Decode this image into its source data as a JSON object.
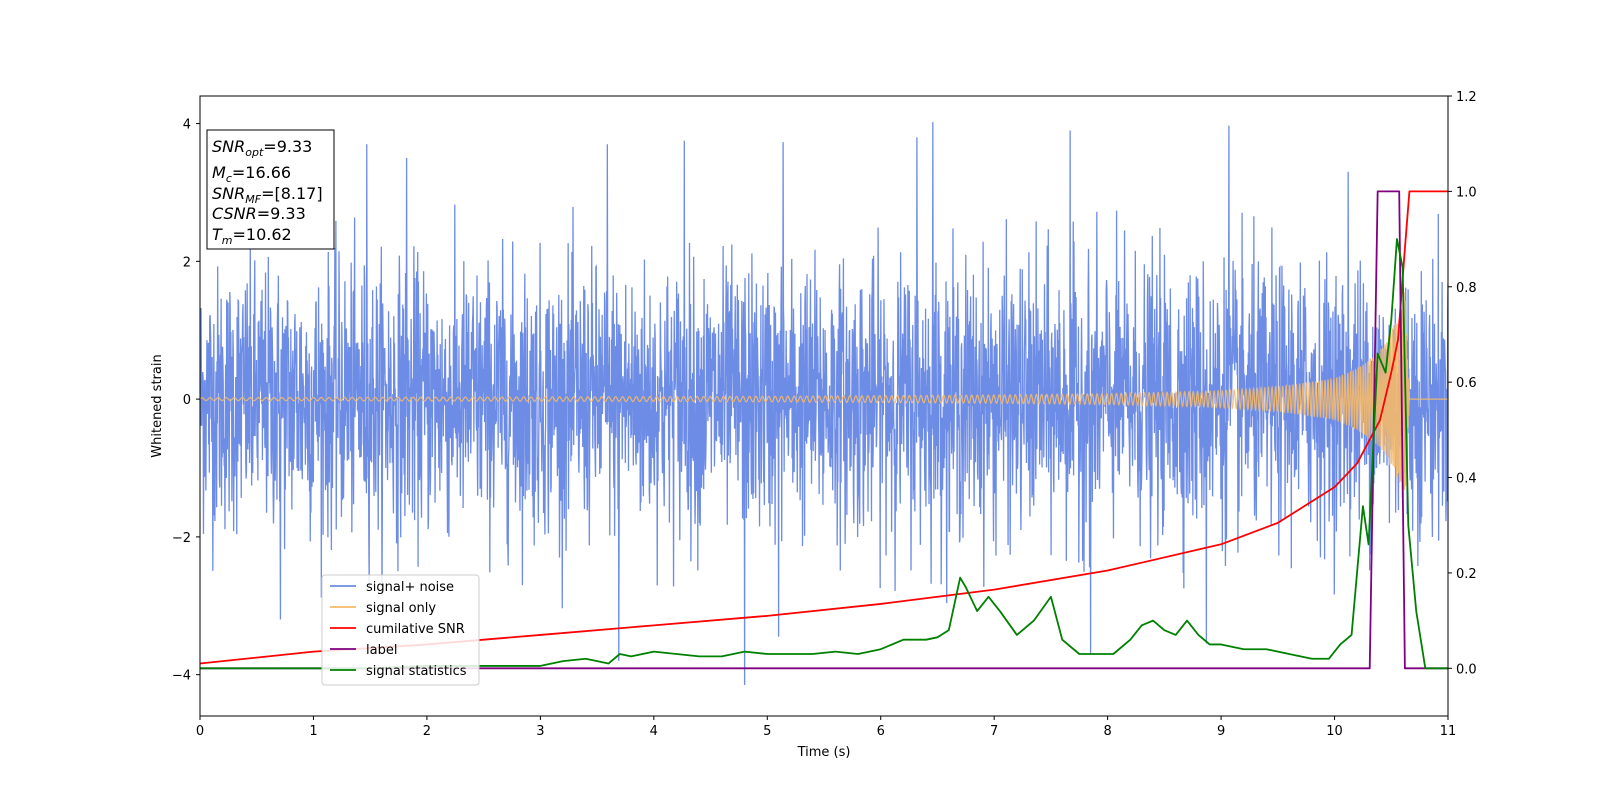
{
  "chart_data": {
    "type": "line",
    "xlabel": "Time (s)",
    "ylabel": "Whitened strain",
    "xlim": [
      0,
      11
    ],
    "ylim_left": [
      -4.6,
      4.4
    ],
    "ylim_right": [
      -0.1,
      1.2
    ],
    "x_ticks": [
      0,
      1,
      2,
      3,
      4,
      5,
      6,
      7,
      8,
      9,
      10,
      11
    ],
    "y_ticks_left": [
      -4,
      -2,
      0,
      2,
      4
    ],
    "y_ticks_right": [
      0.0,
      0.2,
      0.4,
      0.6,
      0.8,
      1.0,
      1.2
    ],
    "grid": false,
    "legend_position": "lower-left",
    "annotation_box": {
      "lines": [
        {
          "base": "SNR",
          "sub": "opt",
          "value": "=9.33"
        },
        {
          "base": "M",
          "sub": "c",
          "value": "=16.66"
        },
        {
          "base": "SNR",
          "sub": "MF",
          "value": "=[8.17]"
        },
        {
          "base": "CSNR",
          "sub": "",
          "value": "=9.33"
        },
        {
          "base": "T",
          "sub": "m",
          "value": "=10.62"
        }
      ]
    },
    "series": [
      {
        "name": "signal+ noise",
        "axis": "left",
        "color": "#6d8ce5",
        "description_kind": "noise band",
        "amplitude_typical": 2.3,
        "amplitude_peak": 4.0,
        "peaks": [
          {
            "x": 1.47,
            "y": 3.7
          },
          {
            "x": 1.82,
            "y": 3.5
          },
          {
            "x": 3.59,
            "y": 3.7
          },
          {
            "x": 4.27,
            "y": 3.75
          },
          {
            "x": 5.14,
            "y": 3.73
          },
          {
            "x": 6.32,
            "y": 3.8
          },
          {
            "x": 6.46,
            "y": 4.02
          },
          {
            "x": 7.67,
            "y": 3.9
          },
          {
            "x": 9.07,
            "y": 3.97
          },
          {
            "x": 10.12,
            "y": 3.3
          }
        ],
        "troughs": [
          {
            "x": 0.71,
            "y": -3.2
          },
          {
            "x": 3.69,
            "y": -3.8
          },
          {
            "x": 4.8,
            "y": -4.15
          },
          {
            "x": 5.1,
            "y": -3.45
          },
          {
            "x": 7.85,
            "y": -3.7
          },
          {
            "x": 8.87,
            "y": -3.55
          }
        ]
      },
      {
        "name": "signal only",
        "axis": "left",
        "color": "#f5b96a",
        "kind": "chirp",
        "envelope": {
          "t": [
            0,
            5,
            7,
            8,
            9,
            9.5,
            10,
            10.2,
            10.4,
            10.55,
            10.62,
            10.66
          ],
          "amp": [
            0.02,
            0.04,
            0.06,
            0.08,
            0.12,
            0.18,
            0.3,
            0.45,
            0.7,
            1.15,
            1.6,
            0
          ]
        },
        "merger_time": 10.62
      },
      {
        "name": "cumilative SNR",
        "axis": "right",
        "color": "#ff0000",
        "x": [
          0,
          1,
          2,
          3,
          4,
          5,
          6,
          7,
          8,
          9,
          9.5,
          10,
          10.2,
          10.4,
          10.5,
          10.56,
          10.62,
          10.66,
          11
        ],
        "y": [
          0.01,
          0.035,
          0.05,
          0.07,
          0.09,
          0.11,
          0.135,
          0.165,
          0.205,
          0.26,
          0.305,
          0.38,
          0.43,
          0.52,
          0.62,
          0.69,
          0.88,
          1.0,
          1.0
        ]
      },
      {
        "name": "label",
        "axis": "right",
        "color": "#800080",
        "x": [
          0,
          10.31,
          10.38,
          10.38,
          10.57,
          10.57,
          10.62,
          10.62,
          11
        ],
        "y": [
          0,
          0,
          1,
          1,
          1,
          1,
          0,
          0,
          0
        ]
      },
      {
        "name": "signal statistics",
        "axis": "right",
        "color": "#008000",
        "x": [
          0,
          0.5,
          1,
          1.5,
          2,
          2.5,
          3,
          3.2,
          3.4,
          3.6,
          3.7,
          3.8,
          4.0,
          4.2,
          4.4,
          4.6,
          4.8,
          5.0,
          5.2,
          5.4,
          5.6,
          5.8,
          6.0,
          6.2,
          6.3,
          6.4,
          6.5,
          6.6,
          6.7,
          6.75,
          6.85,
          6.95,
          7.05,
          7.2,
          7.35,
          7.5,
          7.6,
          7.75,
          7.9,
          8.05,
          8.2,
          8.3,
          8.4,
          8.5,
          8.6,
          8.7,
          8.8,
          8.9,
          9.0,
          9.2,
          9.4,
          9.6,
          9.8,
          9.95,
          10.05,
          10.15,
          10.25,
          10.3,
          10.38,
          10.45,
          10.5,
          10.55,
          10.6,
          10.65,
          10.72,
          10.8,
          11
        ],
        "y": [
          0.0,
          0.0,
          0.0,
          0.0,
          0.005,
          0.005,
          0.005,
          0.015,
          0.02,
          0.01,
          0.03,
          0.025,
          0.035,
          0.03,
          0.025,
          0.025,
          0.035,
          0.03,
          0.03,
          0.03,
          0.035,
          0.03,
          0.04,
          0.06,
          0.06,
          0.06,
          0.065,
          0.08,
          0.19,
          0.17,
          0.12,
          0.15,
          0.12,
          0.07,
          0.1,
          0.15,
          0.06,
          0.03,
          0.03,
          0.03,
          0.06,
          0.09,
          0.1,
          0.08,
          0.07,
          0.1,
          0.07,
          0.05,
          0.05,
          0.04,
          0.04,
          0.03,
          0.02,
          0.02,
          0.05,
          0.07,
          0.34,
          0.26,
          0.66,
          0.62,
          0.73,
          0.9,
          0.84,
          0.3,
          0.12,
          0.0,
          0.0
        ]
      }
    ]
  }
}
